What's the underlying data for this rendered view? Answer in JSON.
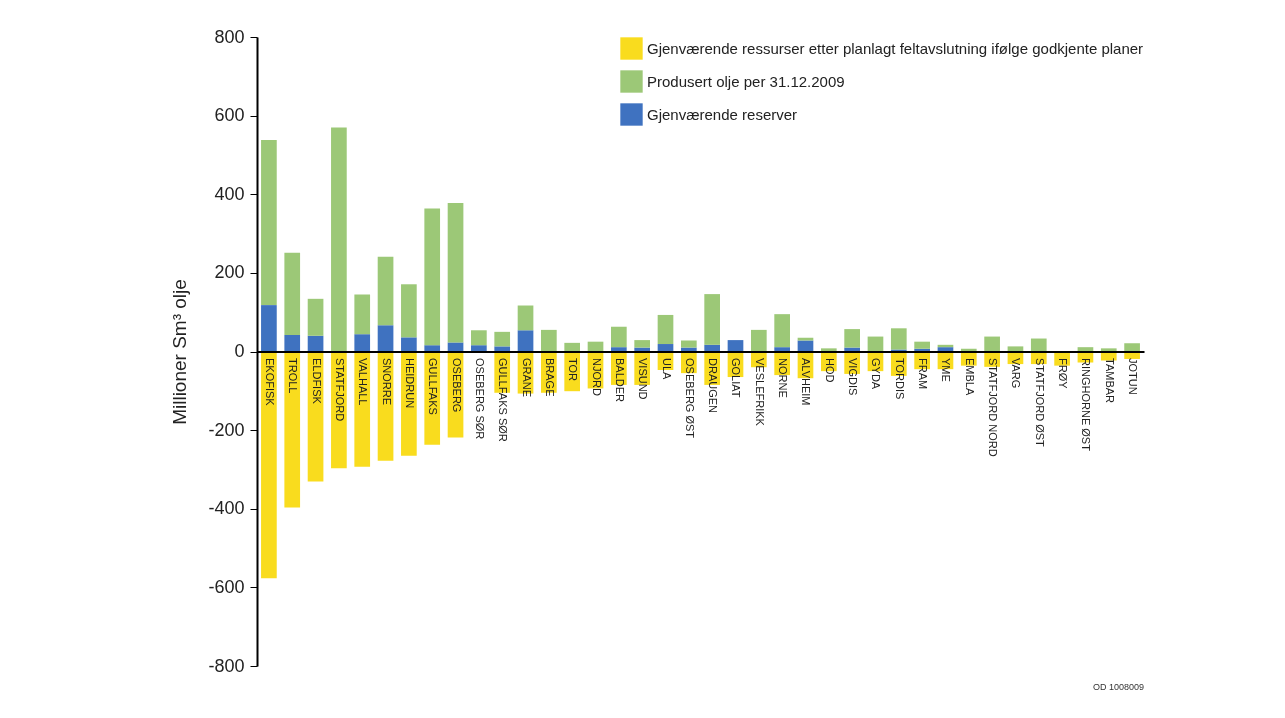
{
  "chart_data": {
    "type": "bar",
    "stacked": true,
    "ylabel": "Millioner Sm³ olje",
    "categories": [
      "EKOFISK",
      "TROLL",
      "ELDFISK",
      "STATFJORD",
      "VALHALL",
      "SNORRE",
      "HEIDRUN",
      "GULLFAKS",
      "OSEBERG",
      "OSEBERG SØR",
      "GULLFAKS SØR",
      "GRANE",
      "BRAGE",
      "TOR",
      "NJORD",
      "BALDER",
      "VISUND",
      "ULA",
      "OSEBERG ØST",
      "DRAUGEN",
      "GOLIAT",
      "VESLEFRIKK",
      "NORNE",
      "ALVHEIM",
      "HOD",
      "VIGDIS",
      "GYDA",
      "TORDIS",
      "FRAM",
      "YME",
      "EMBLA",
      "STATFJORD NORD",
      "VARG",
      "STATFJORD ØST",
      "FRØY",
      "RINGHORNE ØST",
      "TAMBAR",
      "JOTUN"
    ],
    "series": [
      {
        "name": "Gjenværende reserver",
        "color": "#3f72c0",
        "values": [
          118,
          42,
          40,
          0,
          44,
          67,
          36,
          16,
          23,
          16,
          13,
          54,
          0,
          0,
          0,
          11,
          10,
          19,
          10,
          17,
          29,
          0,
          11,
          28,
          0,
          10,
          0,
          5,
          7,
          11,
          0,
          0,
          0,
          0,
          0,
          0,
          0,
          0
        ]
      },
      {
        "name": "Produsert olje per 31.12.2009",
        "color": "#9cc877",
        "values": [
          420,
          209,
          94,
          570,
          101,
          174,
          135,
          348,
          355,
          38,
          37,
          63,
          55,
          22,
          25,
          52,
          19,
          74,
          18,
          129,
          0,
          55,
          84,
          7,
          8,
          47,
          38,
          54,
          18,
          6,
          7,
          38,
          13,
          33,
          0,
          11,
          8,
          21
        ]
      },
      {
        "name": "Gjenværende ressurser etter planlagt feltavslutning ifølge godkjente planer",
        "color": "#f9dc1e",
        "values": [
          -577,
          -397,
          -331,
          -297,
          -293,
          -278,
          -265,
          -237,
          -219,
          null,
          -105,
          -107,
          -105,
          -101,
          -94,
          -85,
          -85,
          -47,
          -55,
          -85,
          -65,
          -40,
          -60,
          -68,
          -50,
          -57,
          -50,
          -62,
          -45,
          -45,
          -36,
          -39,
          -32,
          -32,
          -36,
          -28,
          -23,
          -19
        ]
      }
    ],
    "ylim": [
      -800,
      800
    ],
    "yticks": [
      -800,
      -600,
      -400,
      -200,
      0,
      200,
      400,
      600,
      800
    ],
    "grid": false,
    "legend": "top right",
    "annotations": [
      "OD 1008009"
    ]
  }
}
